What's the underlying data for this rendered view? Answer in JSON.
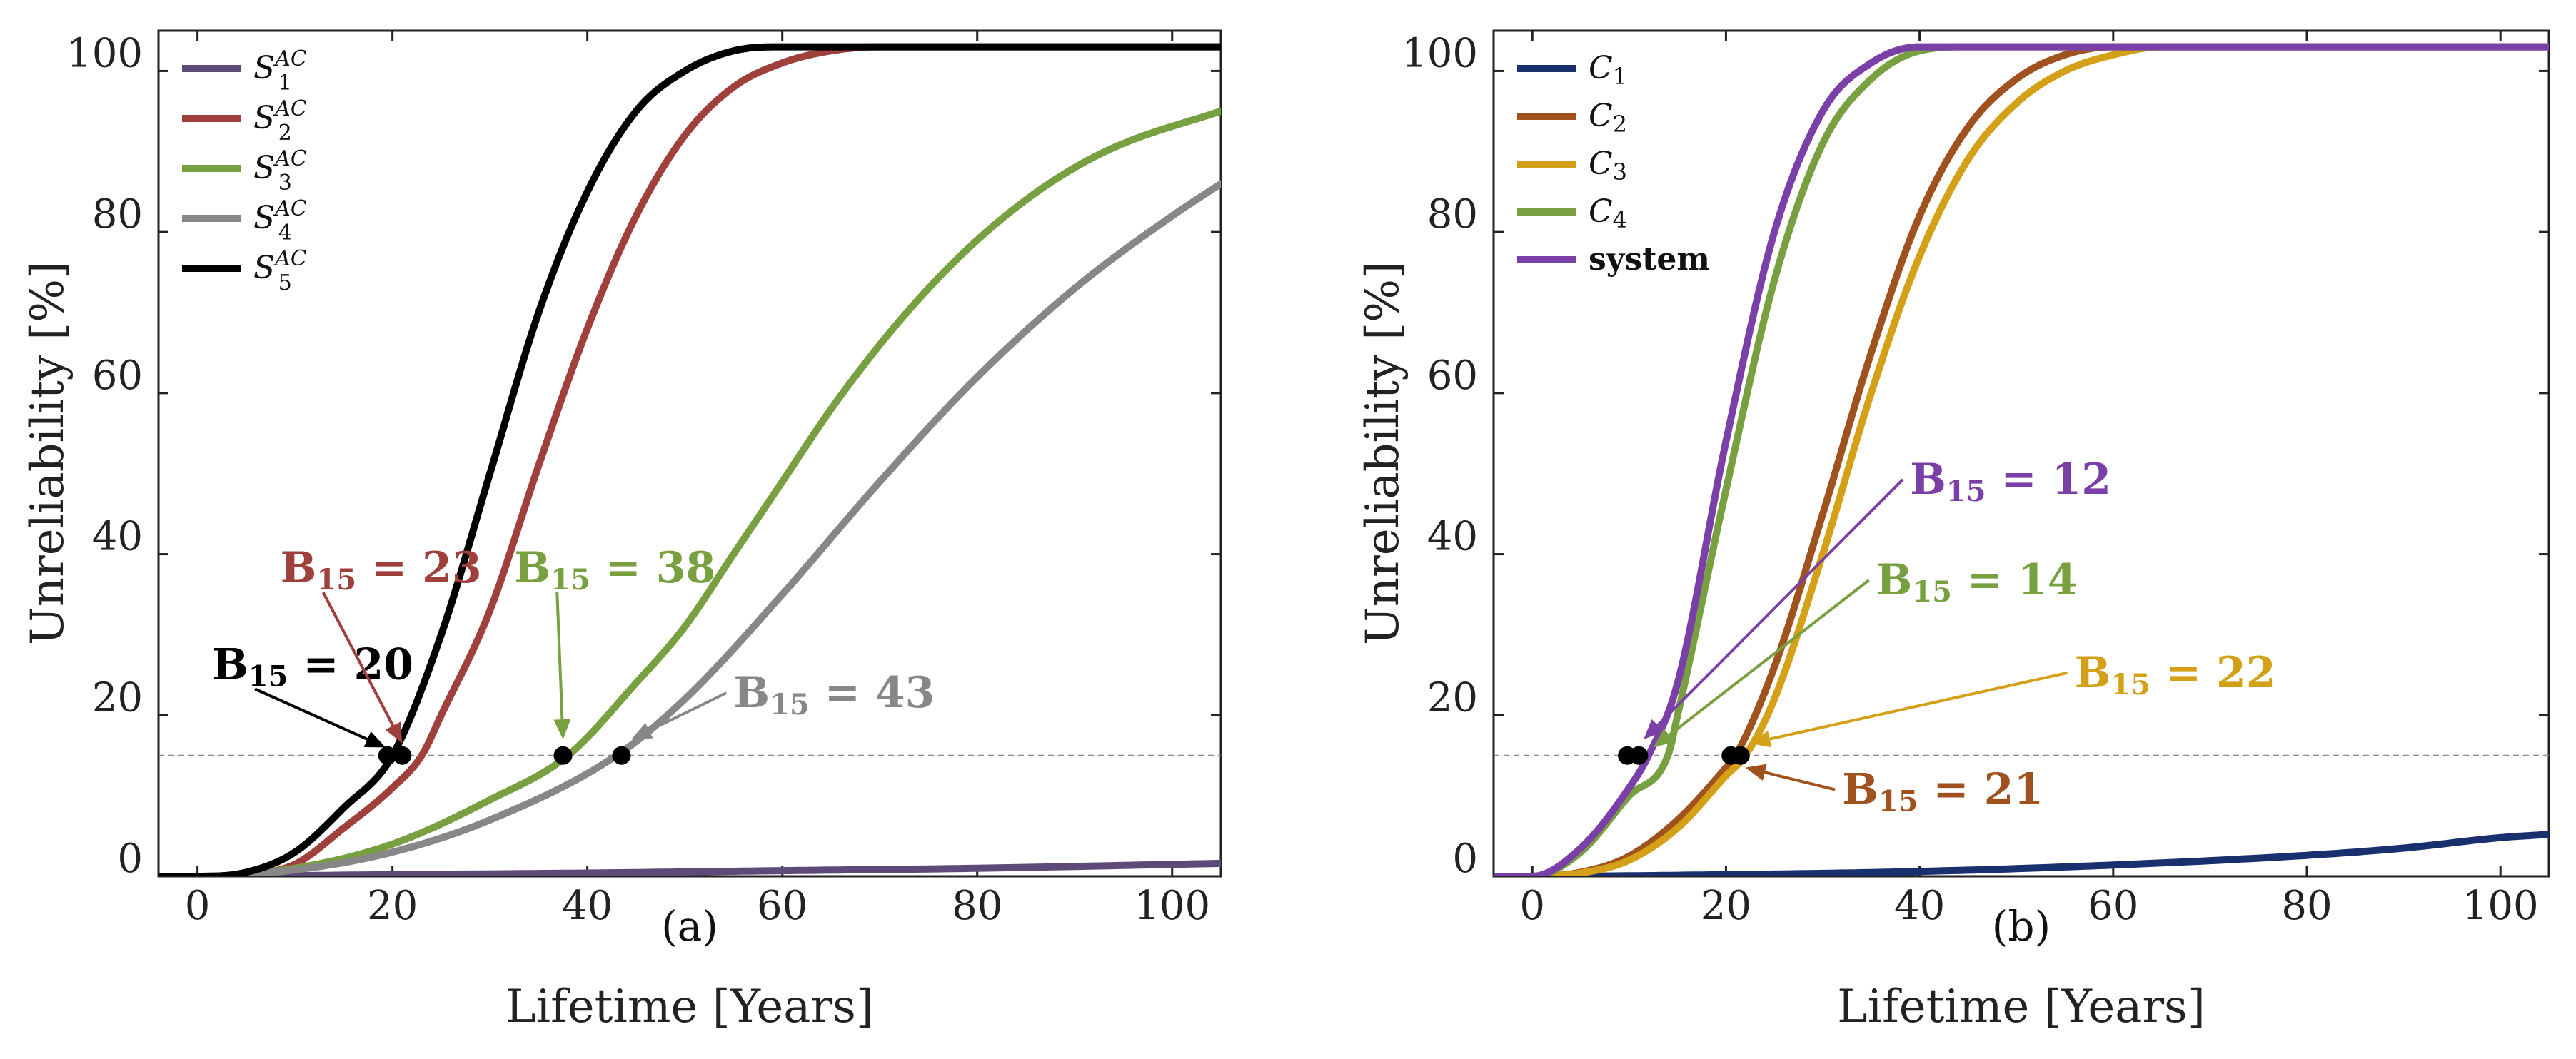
{
  "chart_data": [
    {
      "type": "line",
      "panel_label": "(a)",
      "xlabel": "Lifetime [Years]",
      "ylabel": "Unreliability [%]",
      "xlim": [
        -4,
        105
      ],
      "ylim": [
        0,
        105
      ],
      "xticks": [
        0,
        20,
        40,
        60,
        80,
        100
      ],
      "yticks": [
        0,
        20,
        40,
        60,
        80,
        100
      ],
      "legend_position": "top-left",
      "reference_line": {
        "y": 15,
        "style": "dashed"
      },
      "series": [
        {
          "name": "S1",
          "sub": "1",
          "sup": "AC",
          "color": "#5e4a78",
          "x": [
            -4,
            0,
            20,
            40,
            60,
            80,
            105
          ],
          "y": [
            0,
            0,
            0.2,
            0.4,
            0.7,
            1.0,
            1.6
          ]
        },
        {
          "name": "S2",
          "sub": "2",
          "sup": "AC",
          "color": "#a0403c",
          "x": [
            -4,
            0,
            5,
            10,
            15,
            20,
            23,
            25,
            30,
            35,
            40,
            45,
            50,
            55,
            60,
            65,
            70,
            80,
            105
          ],
          "y": [
            0,
            0,
            0.2,
            1.5,
            6,
            11,
            15,
            20,
            33,
            51,
            68,
            82,
            92,
            98,
            101,
            102.5,
            103,
            103,
            103
          ]
        },
        {
          "name": "S3",
          "sub": "3",
          "sup": "AC",
          "color": "#78a040",
          "x": [
            -4,
            0,
            10,
            20,
            30,
            38,
            45,
            50,
            55,
            60,
            65,
            70,
            75,
            80,
            85,
            90,
            95,
            105
          ],
          "y": [
            0,
            0,
            1,
            4,
            9.5,
            15,
            24,
            31,
            40,
            49,
            58,
            66,
            73,
            79,
            84,
            88,
            91,
            95
          ]
        },
        {
          "name": "S4",
          "sub": "4",
          "sup": "AC",
          "color": "#878787",
          "x": [
            -4,
            0,
            10,
            20,
            30,
            43,
            50,
            60,
            70,
            80,
            90,
            100,
            105
          ],
          "y": [
            0,
            0,
            0.8,
            3,
            7,
            15,
            22,
            35,
            49,
            62,
            73,
            82,
            86
          ]
        },
        {
          "name": "S5",
          "sub": "5",
          "sup": "AC",
          "color": "#000000",
          "x": [
            -4,
            0,
            5,
            10,
            15,
            20,
            25,
            30,
            35,
            40,
            45,
            50,
            55,
            60,
            105
          ],
          "y": [
            0,
            0,
            0.5,
            3,
            8.5,
            15,
            30,
            50,
            70,
            85,
            95,
            100,
            102.5,
            103,
            103
          ]
        }
      ],
      "markers": [
        {
          "x": 19.5,
          "y": 15
        },
        {
          "x": 21,
          "y": 15
        },
        {
          "x": 37.5,
          "y": 15
        },
        {
          "x": 43.5,
          "y": 15
        }
      ],
      "annotations": [
        {
          "label": "B",
          "sub": "15",
          "value": " = 20",
          "color": "#000000",
          "tx": 1.5,
          "ty": 24.5,
          "ax": 19.3,
          "ay": 16
        },
        {
          "label": "B",
          "sub": "15",
          "value": " = 23",
          "color": "#a0403c",
          "tx": 8.5,
          "ty": 36.5,
          "ax": 21,
          "ay": 16.5
        },
        {
          "label": "B",
          "sub": "15",
          "value": " = 38",
          "color": "#78a040",
          "tx": 32.5,
          "ty": 36.5,
          "ax": 37.5,
          "ay": 17
        },
        {
          "label": "B",
          "sub": "15",
          "value": " = 43",
          "color": "#878787",
          "tx": 55,
          "ty": 21,
          "ax": 44.5,
          "ay": 17
        }
      ]
    },
    {
      "type": "line",
      "panel_label": "(b)",
      "xlabel": "Lifetime [Years]",
      "ylabel": "Unreliability [%]",
      "xlim": [
        -4,
        105
      ],
      "ylim": [
        0,
        105
      ],
      "xticks": [
        0,
        20,
        40,
        60,
        80,
        100
      ],
      "yticks": [
        0,
        20,
        40,
        60,
        80,
        100
      ],
      "legend_position": "top-left",
      "reference_line": {
        "y": 15,
        "style": "dashed"
      },
      "series": [
        {
          "name": "C1",
          "sub": "1",
          "color": "#1a2f6e",
          "x": [
            -4,
            0,
            20,
            40,
            60,
            80,
            90,
            100,
            105
          ],
          "y": [
            0,
            0,
            0.2,
            0.6,
            1.4,
            2.6,
            3.5,
            4.8,
            5.2
          ]
        },
        {
          "name": "C2",
          "sub": "2",
          "color": "#a0521e",
          "x": [
            -4,
            0,
            5,
            10,
            15,
            20,
            21,
            25,
            30,
            35,
            40,
            45,
            50,
            55,
            60,
            65,
            70,
            105
          ],
          "y": [
            0,
            0,
            0.5,
            2.5,
            7,
            13.5,
            15,
            26,
            45,
            65,
            82,
            93,
            99,
            102,
            103,
            103,
            103,
            103
          ]
        },
        {
          "name": "C3",
          "sub": "3",
          "color": "#d4a017",
          "x": [
            -4,
            0,
            5,
            10,
            15,
            20,
            22,
            25,
            30,
            35,
            40,
            45,
            50,
            55,
            60,
            65,
            70,
            75,
            105
          ],
          "y": [
            0,
            0,
            0.4,
            2,
            6,
            12.5,
            15,
            22,
            40,
            60,
            77,
            89,
            96,
            100,
            102,
            103,
            103,
            103,
            103
          ]
        },
        {
          "name": "C4",
          "sub": "4",
          "color": "#78a040",
          "x": [
            -4,
            0,
            5,
            10,
            14,
            15,
            20,
            25,
            30,
            35,
            40,
            45,
            105
          ],
          "y": [
            0,
            0,
            3,
            10,
            15,
            20,
            48,
            74,
            91,
            99,
            102.5,
            103,
            103
          ]
        },
        {
          "name": "system",
          "color": "#7b3fa8",
          "x": [
            -4,
            0,
            5,
            10,
            12,
            15,
            20,
            25,
            30,
            35,
            40,
            105
          ],
          "y": [
            0,
            0,
            3.5,
            11,
            15,
            24,
            54,
            80,
            95,
            101,
            103,
            103
          ]
        }
      ],
      "markers": [
        {
          "x": 9.8,
          "y": 15
        },
        {
          "x": 11,
          "y": 15
        },
        {
          "x": 20.5,
          "y": 15
        },
        {
          "x": 21.5,
          "y": 15
        }
      ],
      "annotations": [
        {
          "label": "B",
          "sub": "15",
          "value": " = 12",
          "color": "#7b3fa8",
          "tx": 39,
          "ty": 47.5,
          "ax": 11.5,
          "ay": 17
        },
        {
          "label": "B",
          "sub": "15",
          "value": " = 14",
          "color": "#78a040",
          "tx": 35.5,
          "ty": 35,
          "ax": 12.5,
          "ay": 16
        },
        {
          "label": "B",
          "sub": "15",
          "value": " = 22",
          "color": "#d4a017",
          "tx": 56,
          "ty": 23.5,
          "ax": 22.5,
          "ay": 16.5
        },
        {
          "label": "B",
          "sub": "15",
          "value": " = 21",
          "color": "#a0521e",
          "tx": 32,
          "ty": 9,
          "ax": 22,
          "ay": 13.5
        }
      ]
    }
  ]
}
